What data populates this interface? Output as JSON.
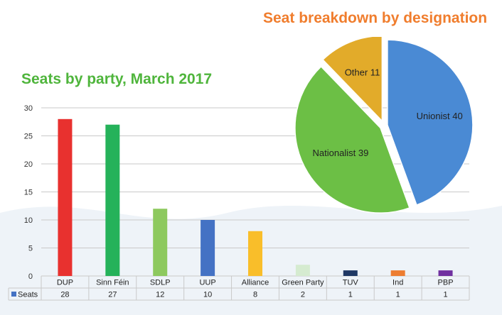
{
  "chart_data": [
    {
      "type": "bar",
      "title": "Seats by party, March 2017",
      "categories": [
        "DUP",
        "Sinn Féin",
        "SDLP",
        "UUP",
        "Alliance",
        "Green Party",
        "TUV",
        "Ind",
        "PBP"
      ],
      "series": [
        {
          "name": "Seats",
          "values": [
            28,
            27,
            12,
            10,
            8,
            2,
            1,
            1,
            1
          ]
        }
      ],
      "bar_colors": [
        "#e8312f",
        "#25b25a",
        "#8dc95e",
        "#4472c4",
        "#f9be2a",
        "#d5ebd0",
        "#1f3864",
        "#ed7d31",
        "#7030a0"
      ],
      "ylim": [
        0,
        30
      ],
      "yticks": [
        0,
        5,
        10,
        15,
        20,
        25,
        30
      ],
      "grid": true,
      "legend": "data-table",
      "data_table": true
    },
    {
      "type": "pie",
      "title": "Seat breakdown by designation",
      "labels": [
        "Unionist",
        "Nationalist",
        "Other"
      ],
      "values": [
        40,
        39,
        11
      ],
      "slice_labels": [
        "Unionist 40",
        "Nationalist 39",
        "Other 11"
      ],
      "colors": [
        "#4a8ad4",
        "#6cbf45",
        "#e2ab2a"
      ],
      "exploded": true
    }
  ]
}
